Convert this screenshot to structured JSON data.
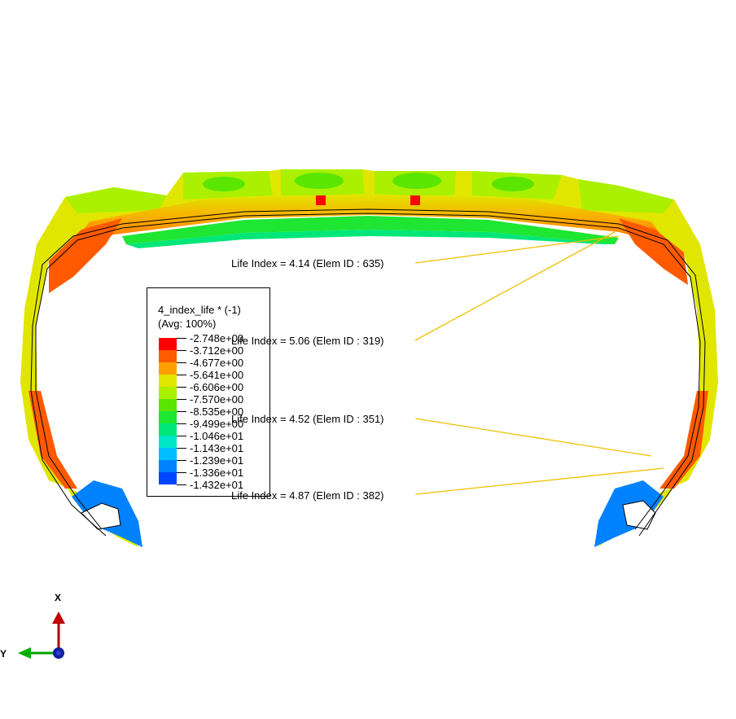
{
  "legend": {
    "title": "4_index_life * (-1)",
    "subtitle": "(Avg: 100%)",
    "entries": [
      {
        "label": "-2.748e+00",
        "color": "#ff0000"
      },
      {
        "label": "-3.712e+00",
        "color": "#ff5a00"
      },
      {
        "label": "-4.677e+00",
        "color": "#ffa000"
      },
      {
        "label": "-5.641e+00",
        "color": "#e1e600"
      },
      {
        "label": "-6.606e+00",
        "color": "#aaf000"
      },
      {
        "label": "-7.570e+00",
        "color": "#5ae600"
      },
      {
        "label": "-8.535e+00",
        "color": "#1ee632"
      },
      {
        "label": "-9.499e+00",
        "color": "#00e678"
      },
      {
        "label": "-1.046e+01",
        "color": "#00e6c8"
      },
      {
        "label": "-1.143e+01",
        "color": "#00beff"
      },
      {
        "label": "-1.239e+01",
        "color": "#0082ff"
      },
      {
        "label": "-1.336e+01",
        "color": "#0046ff"
      },
      {
        "label": "-1.432e+01",
        "color": "#0000ff"
      }
    ]
  },
  "callouts": [
    {
      "text": "Life Index = 4.14 (Elem ID : 635)"
    },
    {
      "text": "Life Index = 5.06 (Elem ID : 319)"
    },
    {
      "text": "Life Index = 4.52 (Elem ID : 351)"
    },
    {
      "text": "Life Index = 4.87 (Elem ID : 382)"
    }
  ],
  "triad": {
    "x_label": "X",
    "y_label": "Y"
  },
  "colors": {
    "leader_line": "#f0c000",
    "outline": "#000000"
  }
}
